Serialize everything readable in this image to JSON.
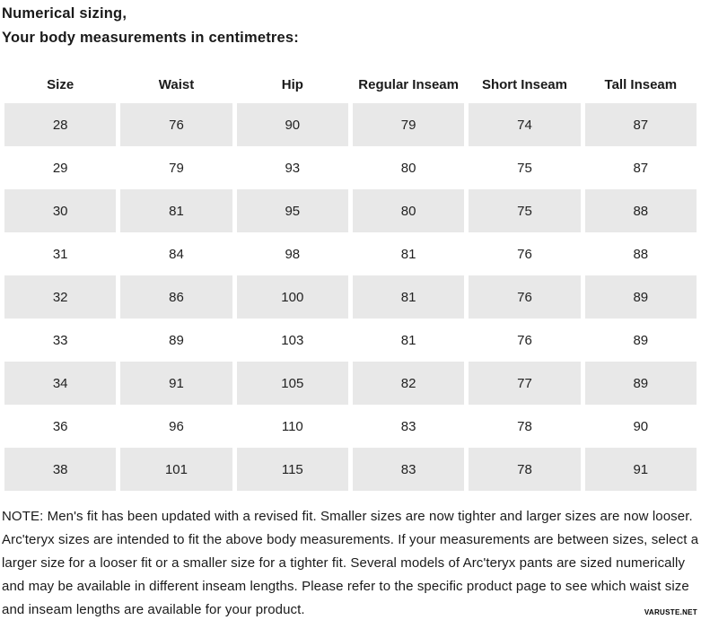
{
  "title": {
    "line1": "Numerical sizing,",
    "line2": "Your body measurements in centimetres:"
  },
  "table": {
    "headers": [
      "Size",
      "Waist",
      "Hip",
      "Regular Inseam",
      "Short Inseam",
      "Tall Inseam"
    ],
    "rows": [
      [
        "28",
        "76",
        "90",
        "79",
        "74",
        "87"
      ],
      [
        "29",
        "79",
        "93",
        "80",
        "75",
        "87"
      ],
      [
        "30",
        "81",
        "95",
        "80",
        "75",
        "88"
      ],
      [
        "31",
        "84",
        "98",
        "81",
        "76",
        "88"
      ],
      [
        "32",
        "86",
        "100",
        "81",
        "76",
        "89"
      ],
      [
        "33",
        "89",
        "103",
        "81",
        "76",
        "89"
      ],
      [
        "34",
        "91",
        "105",
        "82",
        "77",
        "89"
      ],
      [
        "36",
        "96",
        "110",
        "83",
        "78",
        "90"
      ],
      [
        "38",
        "101",
        "115",
        "83",
        "78",
        "91"
      ]
    ]
  },
  "note": "NOTE: Men's fit has been updated with a revised fit. Smaller sizes are now tighter and larger sizes are now looser. Arc'teryx sizes are intended to fit the above body measurements. If your measurements are between sizes, select a larger size for a looser fit or a smaller size for a tighter fit. Several models of Arc'teryx pants are sized numerically and may be available in different inseam lengths. Please refer to the specific product page to see which waist size and inseam lengths are available for your product.",
  "watermark": "VARUSTE.NET",
  "colors": {
    "row_alt": "#e8e8e8",
    "text": "#1a1a1a"
  }
}
